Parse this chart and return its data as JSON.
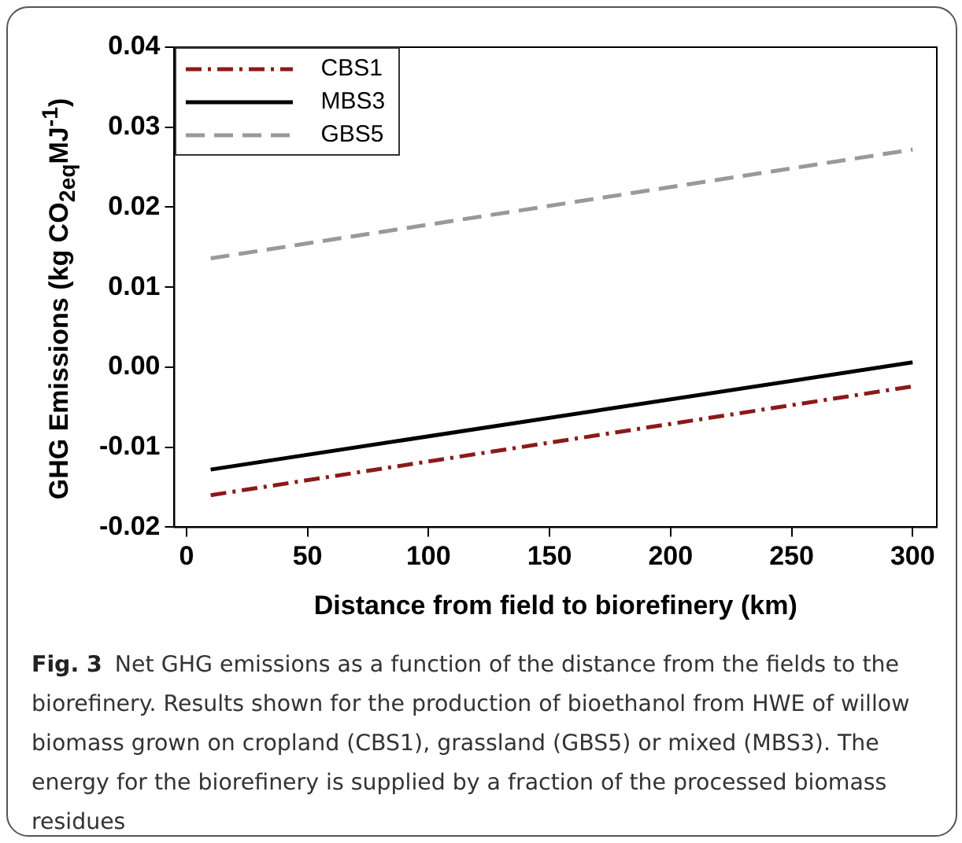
{
  "chart_data": {
    "type": "line",
    "xlabel": "Distance from field to biorefinery (km)",
    "ylabel": "GHG Emissions (kg CO$_{2eq}$MJ$^{-1}$)",
    "xlim": [
      -5,
      310
    ],
    "xticks": [
      0,
      50,
      100,
      150,
      200,
      250,
      300
    ],
    "ylim": [
      -0.02,
      0.04
    ],
    "yticks": [
      {
        "value": -0.02,
        "label": "-0.02"
      },
      {
        "value": -0.01,
        "label": "-0.01"
      },
      {
        "value": 0,
        "label": "0.00"
      },
      {
        "value": 0.01,
        "label": "0.01"
      },
      {
        "value": 0.02,
        "label": "0.02"
      },
      {
        "value": 0.03,
        "label": "0.03"
      },
      {
        "value": 0.04,
        "label": "0.04"
      }
    ],
    "x": [
      10,
      300
    ],
    "series": [
      {
        "name": "CBS1",
        "color": "#8b1a1a",
        "values": [
          -0.016,
          -0.0024
        ],
        "line_style": "dashdot"
      },
      {
        "name": "MBS3",
        "color": "#000000",
        "values": [
          -0.0128,
          0.0006
        ],
        "line_style": "solid"
      },
      {
        "name": "GBS5",
        "color": "#999999",
        "values": [
          0.0136,
          0.0272
        ],
        "line_style": "dashed"
      }
    ],
    "legend": "top left",
    "grid": false,
    "marker": "none",
    "annotations": [
      "Fig. 3",
      "Net GHG emissions as a function of the distance from the fields to the biorefinery. Results shown for the production of bioethanol from HWE of willow biomass grown on cropland (CBS1), grassland (GBS5) or mixed (MBS3). The energy for the biorefinery is supplied by a fraction of the processed biomass residues"
    ]
  }
}
